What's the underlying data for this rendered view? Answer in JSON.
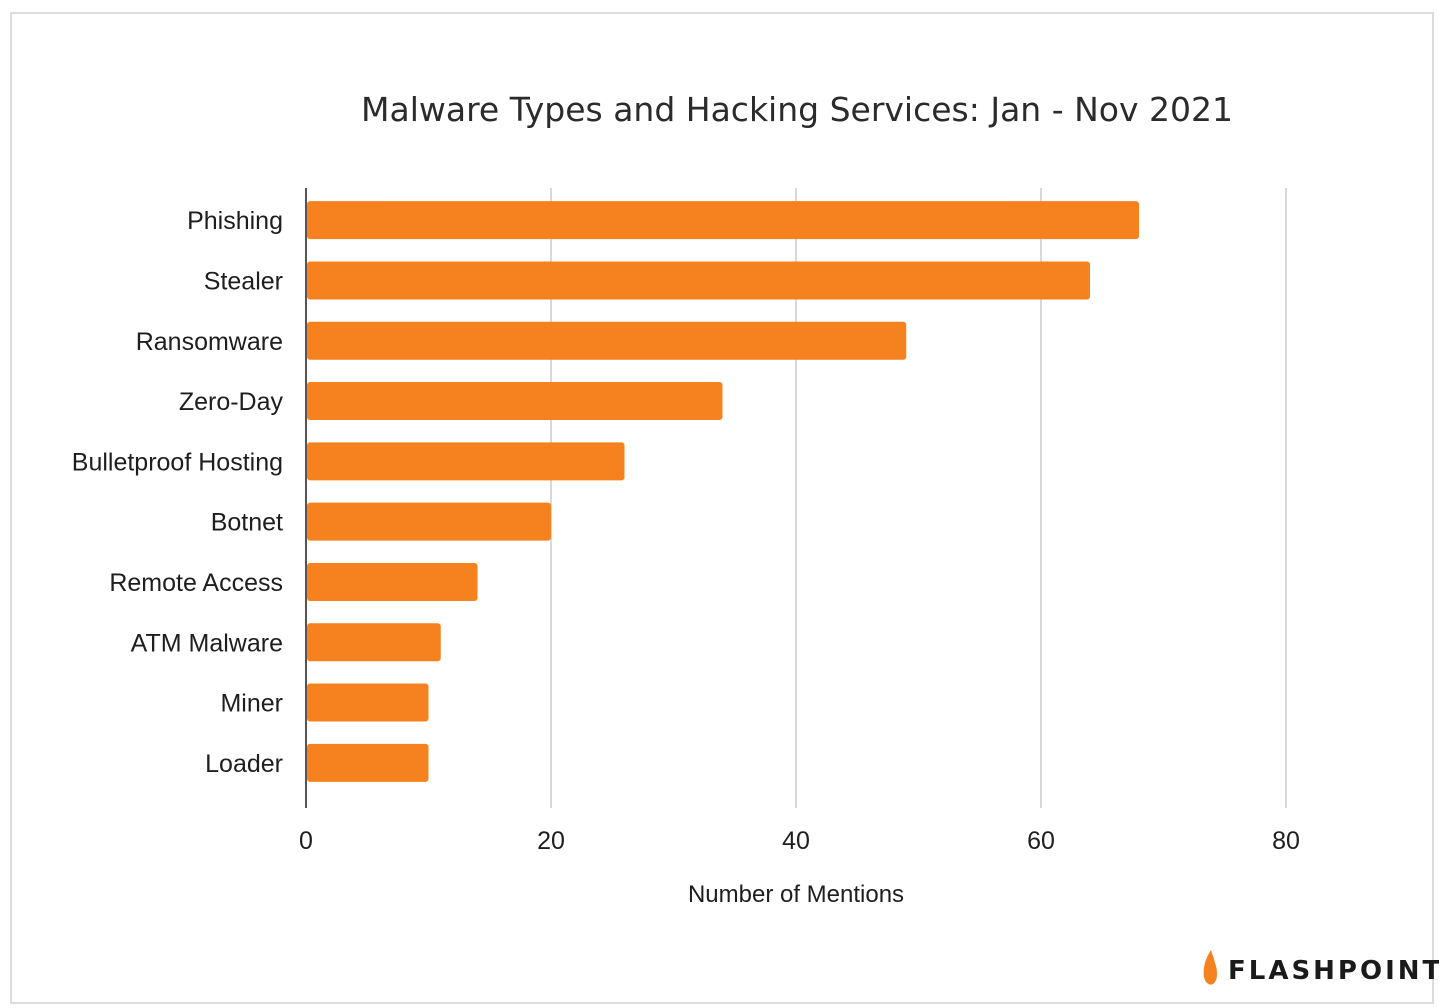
{
  "chart_data": {
    "type": "bar",
    "orientation": "horizontal",
    "title": "Malware Types and Hacking Services: Jan - Nov 2021",
    "xlabel": "Number of Mentions",
    "ylabel": "",
    "categories": [
      "Phishing",
      "Stealer",
      "Ransomware",
      "Zero-Day",
      "Bulletproof Hosting",
      "Botnet",
      "Remote Access",
      "ATM Malware",
      "Miner",
      "Loader"
    ],
    "values": [
      68,
      64,
      49,
      34,
      26,
      20,
      14,
      11,
      10,
      10
    ],
    "xlim": [
      0,
      80
    ],
    "xticks": [
      "0",
      "20",
      "40",
      "60",
      "80"
    ],
    "grid": true,
    "bar_color": "#f5821f"
  },
  "brand": {
    "name": "FLASHPOINT",
    "icon": "flame-icon",
    "accent": "#f5821f"
  }
}
